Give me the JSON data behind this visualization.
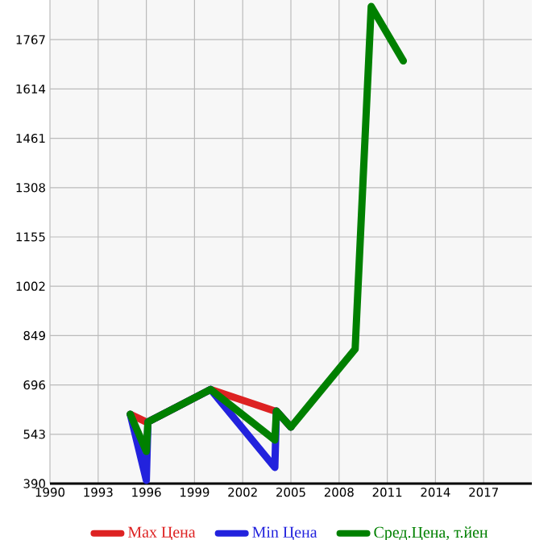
{
  "chart_data": {
    "type": "line",
    "x": [
      1995,
      1996,
      1996.1,
      2000,
      2004,
      2004.1,
      2005,
      2009,
      2010,
      2012
    ],
    "series": [
      {
        "name": "Max Цена",
        "color": "#dd2222",
        "values": [
          605,
          581,
          581,
          682,
          615,
          615,
          565,
          null,
          null,
          null
        ]
      },
      {
        "name": "Min Цена",
        "color": "#2222dd",
        "values": [
          605,
          400,
          581,
          682,
          440,
          615,
          565,
          null,
          null,
          null
        ]
      },
      {
        "name": "Сред.Цена, т.йен",
        "color": "#008000",
        "values": [
          605,
          490,
          581,
          682,
          525,
          615,
          565,
          807,
          1870,
          1701
        ]
      }
    ],
    "xlim": [
      1990,
      2020
    ],
    "ylim": [
      390,
      1890
    ],
    "xticks": [
      1990,
      1993,
      1996,
      1999,
      2002,
      2005,
      2008,
      2011,
      2014,
      2017
    ],
    "yticks": [
      390,
      543,
      696,
      849,
      1002,
      1155,
      1308,
      1461,
      1614,
      1767
    ],
    "grid": true,
    "legend": "bottom"
  }
}
